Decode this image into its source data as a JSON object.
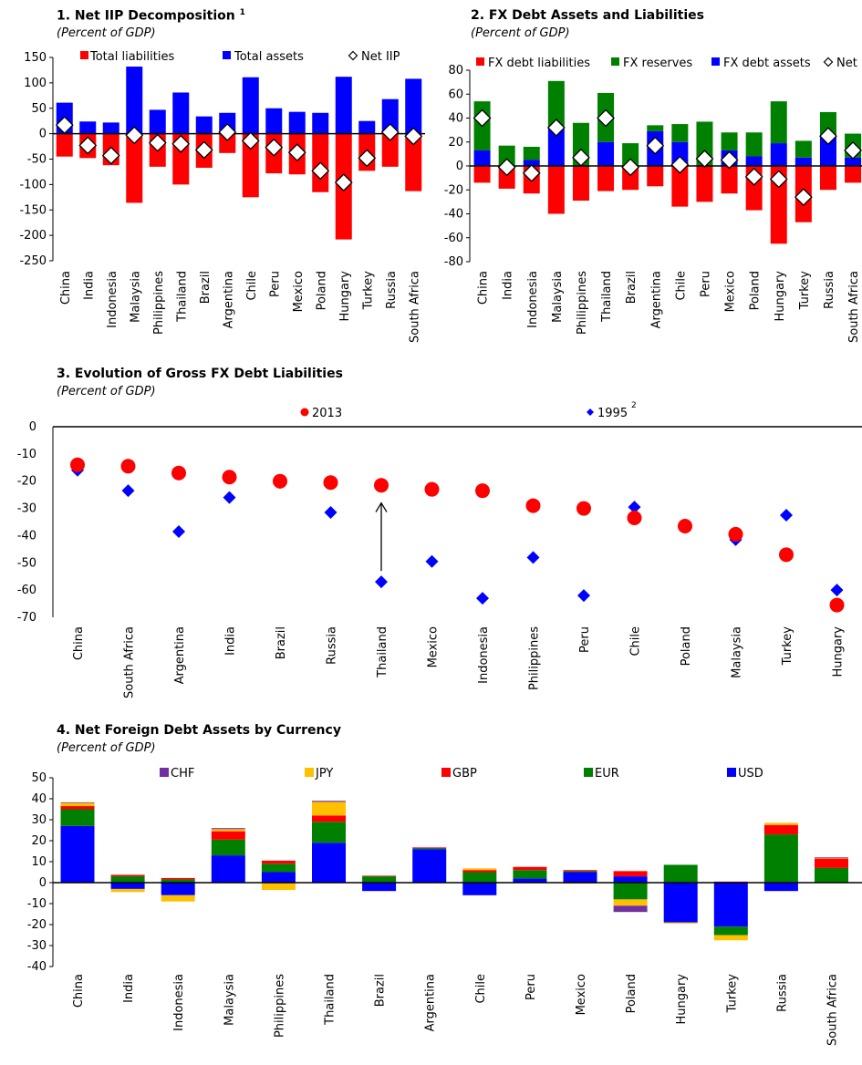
{
  "chart_data": [
    {
      "type": "bar",
      "title": "1.  Net IIP Decomposition",
      "title_superscript": "1",
      "subtitle": "(Percent of GDP)",
      "categories": [
        "China",
        "India",
        "Indonesia",
        "Malaysia",
        "Philippines",
        "Thailand",
        "Brazil",
        "Argentina",
        "Chile",
        "Peru",
        "Mexico",
        "Poland",
        "Hungary",
        "Turkey",
        "Russia",
        "South Africa"
      ],
      "series": [
        {
          "name": "Total liabilities",
          "color": "#ff0000",
          "values": [
            -45,
            -48,
            -62,
            -136,
            -65,
            -100,
            -67,
            -38,
            -125,
            -78,
            -80,
            -115,
            -208,
            -73,
            -65,
            -113
          ]
        },
        {
          "name": "Total assets",
          "color": "#0000ff",
          "values": [
            61,
            24,
            22,
            132,
            47,
            81,
            34,
            41,
            111,
            50,
            43,
            41,
            112,
            25,
            68,
            108
          ]
        },
        {
          "name": "Net IIP",
          "marker": "diamond-open",
          "values": [
            17,
            -23,
            -43,
            -3,
            -18,
            -20,
            -32,
            3,
            -14,
            -27,
            -37,
            -73,
            -96,
            -48,
            3,
            -5
          ]
        }
      ],
      "ylim": [
        -250,
        150
      ],
      "yticks": [
        150,
        100,
        50,
        0,
        -50,
        -100,
        -150,
        -200,
        -250
      ],
      "legend": "top"
    },
    {
      "type": "bar",
      "title": "2.  FX Debt Assets and Liabilities",
      "subtitle": "(Percent of GDP)",
      "categories": [
        "China",
        "India",
        "Indonesia",
        "Malaysia",
        "Philippines",
        "Thailand",
        "Brazil",
        "Argentina",
        "Chile",
        "Peru",
        "Mexico",
        "Poland",
        "Hungary",
        "Turkey",
        "Russia",
        "South Africa"
      ],
      "series": [
        {
          "name": "FX debt liabilities",
          "color": "#ff0000",
          "values": [
            -14,
            -19,
            -23,
            -40,
            -29,
            -21,
            -20,
            -17,
            -34,
            -30,
            -23,
            -37,
            -65,
            -47,
            -20,
            -14
          ]
        },
        {
          "name": "FX reserves",
          "color": "#008000",
          "values": [
            41,
            17,
            11,
            40,
            36,
            41,
            19,
            5,
            15,
            37,
            15,
            20,
            35,
            14,
            21,
            20
          ]
        },
        {
          "name": "FX debt assets",
          "color": "#0000ff",
          "values": [
            13,
            0,
            5,
            31,
            0,
            20,
            0,
            29,
            20,
            0,
            13,
            8,
            19,
            7,
            24,
            7
          ]
        },
        {
          "name": "Net",
          "marker": "diamond-open",
          "values": [
            40,
            -1,
            -6,
            32,
            7,
            40,
            -1,
            17,
            1,
            6,
            5,
            -9,
            -11,
            -26,
            25,
            13
          ]
        }
      ],
      "ylim": [
        -80,
        80
      ],
      "yticks": [
        80,
        60,
        40,
        20,
        0,
        -20,
        -40,
        -60,
        -80
      ],
      "legend": "top"
    },
    {
      "type": "scatter",
      "title": "3.  Evolution of Gross FX Debt Liabilities",
      "subtitle": "(Percent of GDP)",
      "categories": [
        "China",
        "South Africa",
        "Argentina",
        "India",
        "Brazil",
        "Russia",
        "Thailand",
        "Mexico",
        "Indonesia",
        "Philippines",
        "Peru",
        "Chile",
        "Poland",
        "Malaysia",
        "Turkey",
        "Hungary"
      ],
      "series": [
        {
          "name": "2013",
          "color": "#ff0000",
          "marker": "circle",
          "values": [
            -14,
            -14.5,
            -17,
            -18.5,
            -20,
            -20.5,
            -21.5,
            -23,
            -23.5,
            -29,
            -30,
            -33.5,
            -36.5,
            -39.5,
            -47,
            -65.5
          ]
        },
        {
          "name": "1995",
          "superscript": "2",
          "color": "#0000ff",
          "marker": "diamond",
          "values": [
            -16,
            -23.5,
            -38.5,
            -26,
            -20.5,
            -31.5,
            -57,
            -49.5,
            -63,
            -48,
            -62,
            -29.5,
            -36.5,
            -41.5,
            -32.5,
            -60
          ]
        }
      ],
      "annotation": {
        "type": "arrow",
        "category": "Thailand",
        "from": -57,
        "to": -28
      },
      "ylim": [
        -70,
        0
      ],
      "yticks": [
        0,
        -10,
        -20,
        -30,
        -40,
        -50,
        -60,
        -70
      ],
      "legend": "top"
    },
    {
      "type": "bar",
      "stacked": true,
      "title": "4.  Net Foreign Debt Assets by Currency",
      "subtitle": "(Percent of GDP)",
      "categories": [
        "China",
        "India",
        "Indonesia",
        "Malaysia",
        "Philippines",
        "Thailand",
        "Brazil",
        "Argentina",
        "Chile",
        "Peru",
        "Mexico",
        "Poland",
        "Hungary",
        "Turkey",
        "Russia",
        "South Africa"
      ],
      "series": [
        {
          "name": "USD",
          "color": "#0000ff",
          "values": [
            27,
            -3,
            -6,
            13,
            5,
            19,
            -4,
            16,
            -6,
            2,
            5,
            3,
            -19,
            -21,
            -4,
            0
          ]
        },
        {
          "name": "EUR",
          "color": "#008000",
          "values": [
            8,
            3,
            1.5,
            7.5,
            4,
            10,
            3,
            0.5,
            5,
            4,
            0.5,
            -8,
            8.5,
            -4,
            23,
            7
          ]
        },
        {
          "name": "GBP",
          "color": "#ff0000",
          "values": [
            1.5,
            0.7,
            0.7,
            4,
            1.5,
            3,
            0.3,
            0.3,
            1,
            1.5,
            0.5,
            2.5,
            0,
            0.5,
            4.5,
            4.5
          ]
        },
        {
          "name": "JPY",
          "color": "#ffc000",
          "values": [
            1.5,
            -1.5,
            -3,
            1,
            -3.5,
            6.5,
            0,
            0,
            0.8,
            0,
            -0.5,
            -3,
            -0.5,
            -2.5,
            1,
            0.3
          ]
        },
        {
          "name": "CHF",
          "color": "#7030a0",
          "values": [
            0.3,
            0,
            0,
            0.5,
            0,
            0.5,
            0,
            0,
            0,
            0,
            0,
            -3,
            0,
            0,
            0,
            0.3
          ]
        }
      ],
      "legend_order": [
        "CHF",
        "JPY",
        "GBP",
        "EUR",
        "USD"
      ],
      "ylim": [
        -40,
        50
      ],
      "yticks": [
        50,
        40,
        30,
        20,
        10,
        0,
        -10,
        -20,
        -30,
        -40
      ],
      "legend": "top"
    }
  ]
}
